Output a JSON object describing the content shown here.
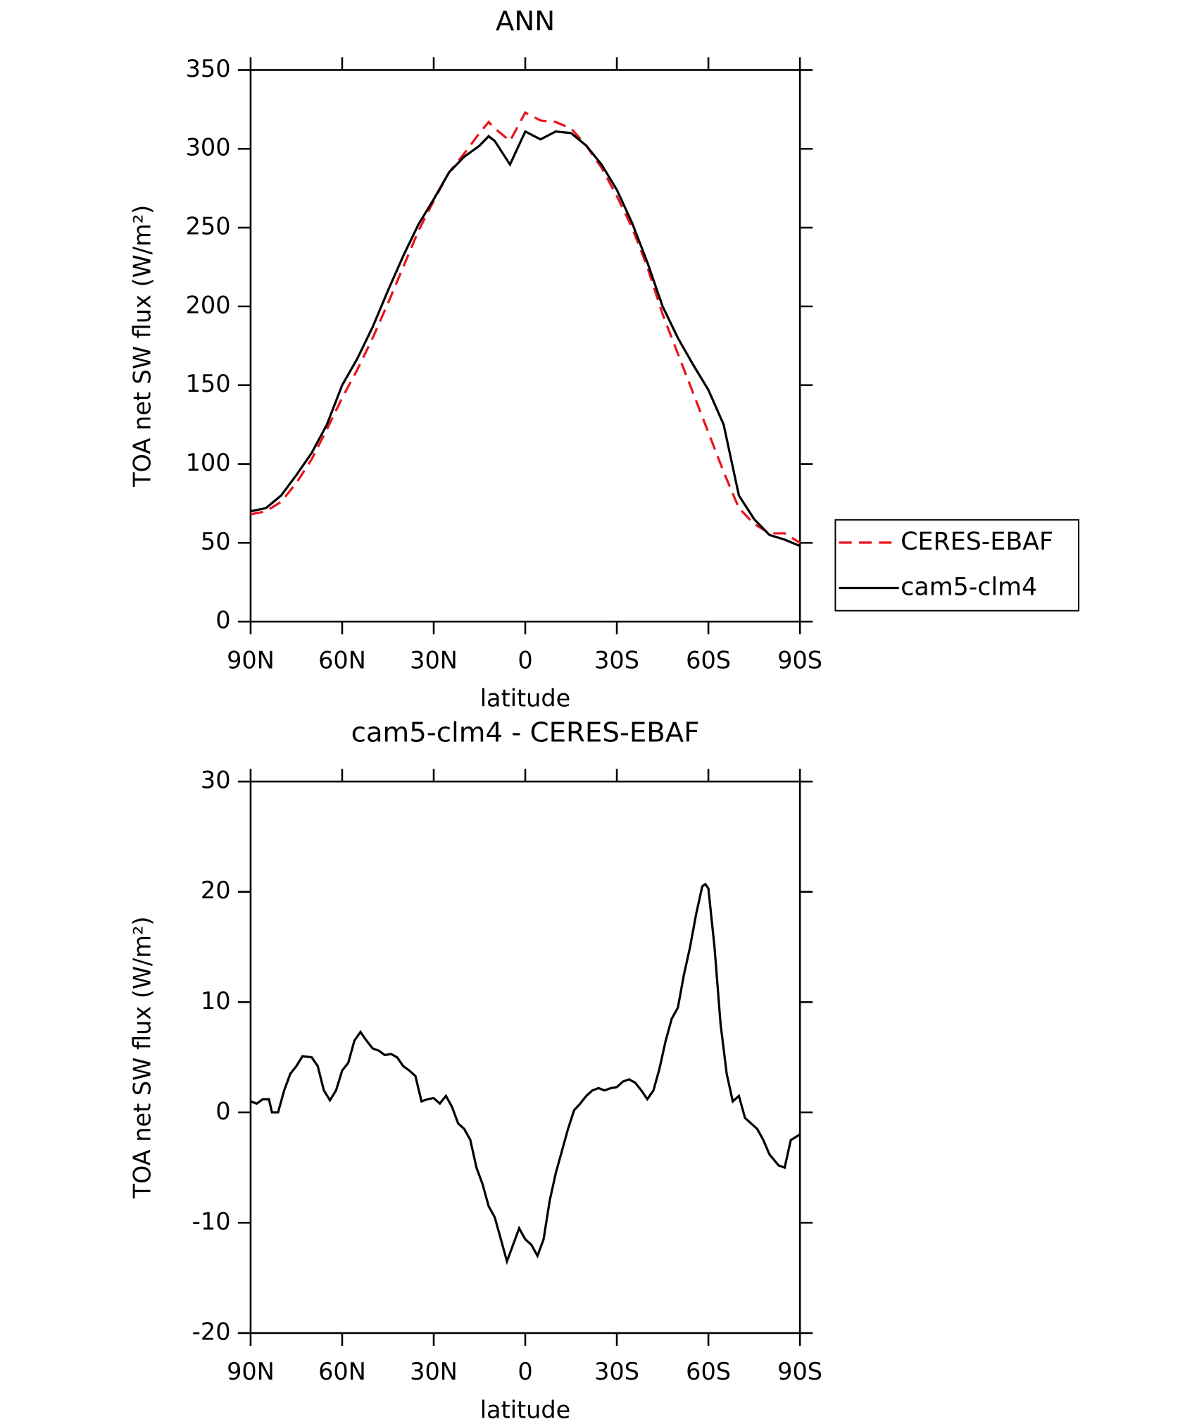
{
  "chart_data": [
    {
      "type": "line",
      "title": "ANN",
      "xlabel": "latitude",
      "ylabel": "TOA net SW flux (W/m²)",
      "x": [
        90,
        85,
        80,
        75,
        70,
        65,
        60,
        55,
        50,
        45,
        40,
        35,
        30,
        25,
        20,
        15,
        12,
        10,
        5,
        0,
        -5,
        -10,
        -15,
        -20,
        -25,
        -30,
        -35,
        -40,
        -45,
        -50,
        -55,
        -60,
        -65,
        -70,
        -75,
        -80,
        -85,
        -90
      ],
      "series": [
        {
          "name": "CERES-EBAF",
          "color": "#e8141c",
          "dashed": true,
          "values": [
            68,
            70,
            76,
            88,
            103,
            122,
            142,
            160,
            180,
            202,
            225,
            248,
            267,
            285,
            297,
            310,
            317,
            313,
            305,
            323,
            318,
            317,
            313,
            302,
            288,
            270,
            250,
            225,
            195,
            170,
            145,
            120,
            95,
            72,
            62,
            56,
            56,
            50
          ]
        },
        {
          "name": "cam5-clm4",
          "color": "#000000",
          "dashed": false,
          "values": [
            70,
            72,
            80,
            93,
            107,
            125,
            150,
            167,
            187,
            210,
            232,
            252,
            268,
            285,
            295,
            302,
            308,
            305,
            290,
            311,
            306,
            311,
            310,
            302,
            290,
            274,
            253,
            228,
            200,
            180,
            163,
            147,
            125,
            80,
            65,
            55,
            52,
            48
          ]
        }
      ],
      "xlim": [
        90,
        -90
      ],
      "xticks": [
        {
          "value": 90,
          "label": "90N"
        },
        {
          "value": 60,
          "label": "60N"
        },
        {
          "value": 30,
          "label": "30N"
        },
        0,
        {
          "value": -30,
          "label": "30S"
        },
        {
          "value": -60,
          "label": "60S"
        },
        {
          "value": -90,
          "label": "90S"
        }
      ],
      "ylim": [
        0,
        350
      ],
      "yticks": [
        0,
        50,
        100,
        150,
        200,
        250,
        300,
        350
      ],
      "legend": "right"
    },
    {
      "type": "line",
      "title": "cam5-clm4 - CERES-EBAF",
      "xlabel": "latitude",
      "ylabel": "TOA net SW flux (W/m²)",
      "x": [
        90,
        88,
        86,
        84,
        83,
        81,
        79,
        77,
        75,
        73,
        70,
        68,
        66,
        64,
        62,
        60,
        58,
        56,
        54,
        52,
        50,
        48,
        46,
        44,
        42,
        40,
        38,
        36,
        34,
        32,
        30,
        28,
        26,
        24,
        22,
        20,
        18,
        16,
        14,
        12,
        10,
        8,
        6,
        4,
        2,
        0,
        -2,
        -4,
        -6,
        -8,
        -10,
        -12,
        -14,
        -16,
        -18,
        -20,
        -22,
        -24,
        -26,
        -28,
        -30,
        -32,
        -34,
        -36,
        -38,
        -40,
        -42,
        -44,
        -46,
        -48,
        -50,
        -52,
        -54,
        -56,
        -58,
        -59,
        -60,
        -62,
        -64,
        -66,
        -68,
        -70,
        -72,
        -74,
        -76,
        -78,
        -80,
        -83,
        -85,
        -87,
        -90
      ],
      "series": [
        {
          "color": "#000000",
          "dashed": false,
          "values": [
            1,
            0.8,
            1.2,
            1.2,
            0,
            0,
            2,
            3.5,
            4.2,
            5.1,
            5,
            4.2,
            2,
            1.1,
            2,
            3.8,
            4.5,
            6.5,
            7.3,
            6.5,
            5.8,
            5.6,
            5.2,
            5.3,
            5,
            4.2,
            3.8,
            3.3,
            1,
            1.2,
            1.3,
            0.8,
            1.5,
            0.5,
            -1,
            -1.5,
            -2.5,
            -5,
            -6.5,
            -8.5,
            -9.5,
            -11.5,
            -13.5,
            -12,
            -10.5,
            -11.5,
            -12,
            -13,
            -11.5,
            -8,
            -5.5,
            -3.5,
            -1.5,
            0.2,
            0.8,
            1.5,
            2,
            2.2,
            2,
            2.2,
            2.3,
            2.8,
            3,
            2.7,
            2,
            1.2,
            2,
            4,
            6.5,
            8.5,
            9.5,
            12.5,
            15,
            18,
            20.5,
            20.7,
            20.3,
            15,
            8,
            3.5,
            1,
            1.5,
            -0.5,
            -1,
            -1.5,
            -2.5,
            -3.8,
            -4.8,
            -5,
            -2.5,
            -2
          ]
        }
      ],
      "xlim": [
        90,
        -90
      ],
      "xticks": [
        {
          "value": 90,
          "label": "90N"
        },
        {
          "value": 60,
          "label": "60N"
        },
        {
          "value": 30,
          "label": "30N"
        },
        0,
        {
          "value": -30,
          "label": "30S"
        },
        {
          "value": -60,
          "label": "60S"
        },
        {
          "value": -90,
          "label": "90S"
        }
      ],
      "ylim": [
        -20,
        30
      ],
      "yticks": [
        -20,
        -10,
        0,
        10,
        20,
        30
      ]
    }
  ]
}
